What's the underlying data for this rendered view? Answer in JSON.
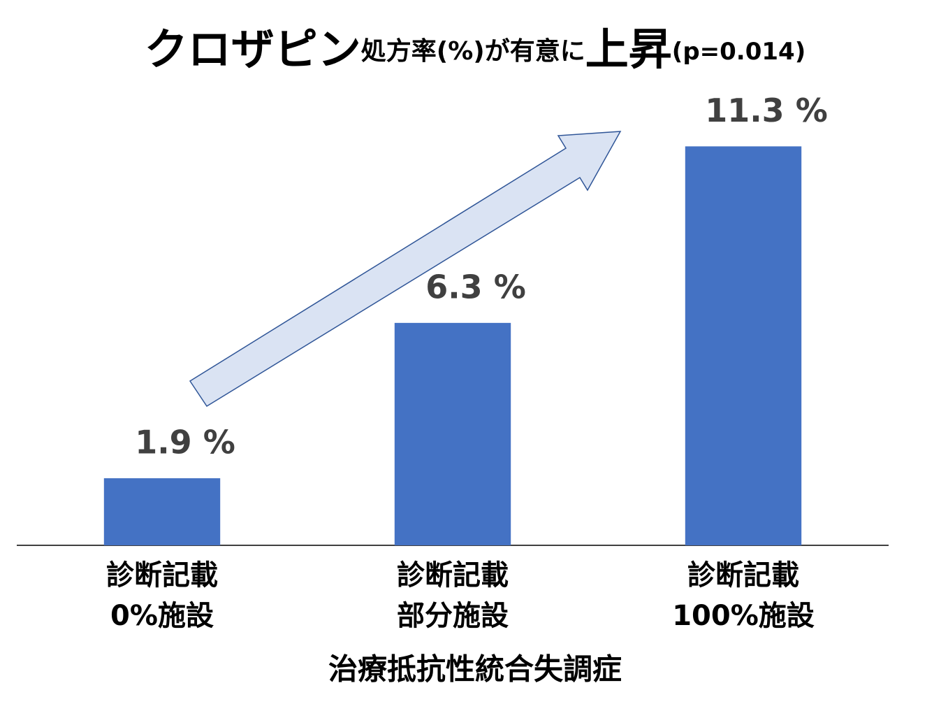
{
  "chart_data": {
    "type": "bar",
    "title": [
      "クロザピン",
      "処方率(%)が有意に",
      "上昇",
      "(p=0.014)"
    ],
    "categories": [
      [
        "診断記載",
        "0%施設"
      ],
      [
        "診断記載",
        "部分施設"
      ],
      [
        "診断記載",
        "100%施設"
      ]
    ],
    "x_label": "治療抵抗性統合失調症",
    "values": [
      1.9,
      6.3,
      11.3
    ],
    "value_labels": [
      "1.9 %",
      "6.3 %",
      "11.3 %"
    ],
    "color": "#4472c4",
    "ylim": [
      0,
      12
    ]
  }
}
